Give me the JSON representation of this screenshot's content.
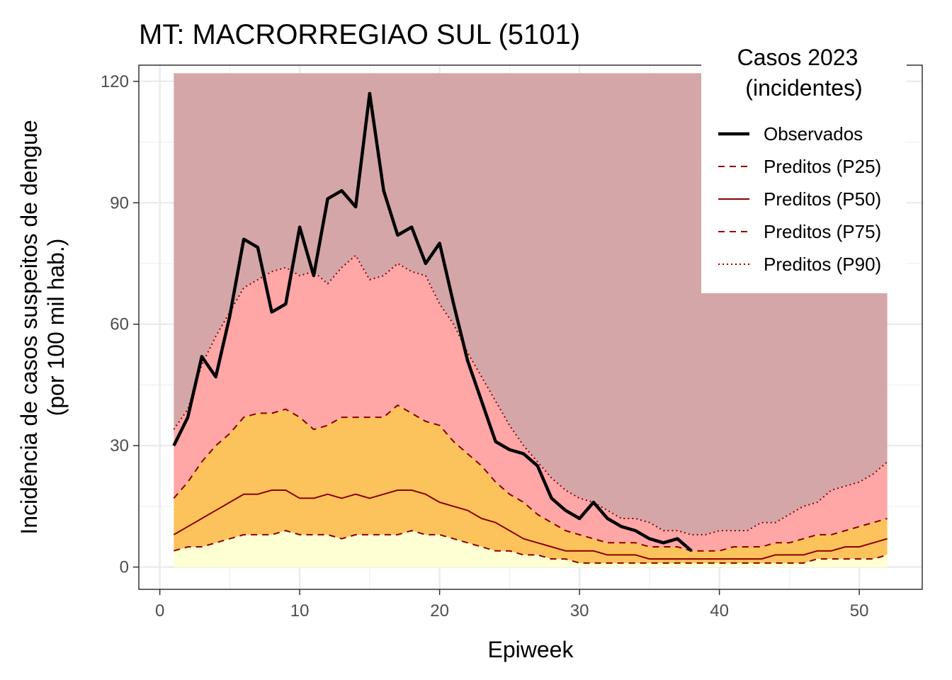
{
  "chart_data": {
    "type": "area",
    "title": "MT: MACRORREGIAO SUL (5101)",
    "xlabel": "Epiweek",
    "ylabel_line1": "Incidência de casos suspeitos de dengue",
    "ylabel_line2": "(por 100 mil hab.)",
    "xlim": [
      -1.5,
      54.5
    ],
    "ylim": [
      -5.5,
      124
    ],
    "xticks": [
      0,
      10,
      20,
      30,
      40,
      50
    ],
    "yticks": [
      0,
      30,
      60,
      90,
      120
    ],
    "grid": true,
    "legend": {
      "title_line1": "Casos 2023",
      "title_line2": "(incidentes)",
      "position": "top-right",
      "entries": [
        {
          "label": "Observados",
          "style": "solid-thick",
          "color": "#000000"
        },
        {
          "label": "Preditos (P25)",
          "style": "dashed",
          "color": "#8b0000"
        },
        {
          "label": "Preditos (P50)",
          "style": "solid",
          "color": "#8b0000"
        },
        {
          "label": "Preditos (P75)",
          "style": "dashed",
          "color": "#8b0000"
        },
        {
          "label": "Preditos (P90)",
          "style": "dotted",
          "color": "#8b0000"
        }
      ]
    },
    "colors": {
      "band_low": "#ffffd4",
      "band_p25_p75": "#fcc35c",
      "band_p75_p90": "#ffa6a6",
      "band_above_p90": "#d5a6a8",
      "predicted_line": "#8b0000",
      "observed_line": "#000000"
    },
    "band_top": 122,
    "weeks": [
      1,
      2,
      3,
      4,
      5,
      6,
      7,
      8,
      9,
      10,
      11,
      12,
      13,
      14,
      15,
      16,
      17,
      18,
      19,
      20,
      21,
      22,
      23,
      24,
      25,
      26,
      27,
      28,
      29,
      30,
      31,
      32,
      33,
      34,
      35,
      36,
      37,
      38,
      39,
      40,
      41,
      42,
      43,
      44,
      45,
      46,
      47,
      48,
      49,
      50,
      51,
      52
    ],
    "series": [
      {
        "name": "Preditos (P25)",
        "values": [
          4,
          5,
          5,
          6,
          7,
          8,
          8,
          8,
          9,
          8,
          8,
          8,
          7,
          8,
          8,
          8,
          8,
          9,
          8,
          8,
          7,
          6,
          5,
          4,
          4,
          3,
          3,
          2,
          2,
          1,
          1,
          1,
          1,
          1,
          1,
          1,
          1,
          1,
          1,
          1,
          1,
          1,
          1,
          1,
          1,
          1,
          2,
          2,
          2,
          2,
          2,
          3
        ]
      },
      {
        "name": "Preditos (P50)",
        "values": [
          8,
          10,
          12,
          14,
          16,
          18,
          18,
          19,
          19,
          17,
          17,
          18,
          17,
          18,
          17,
          18,
          19,
          19,
          18,
          16,
          15,
          14,
          12,
          11,
          9,
          7,
          6,
          5,
          4,
          4,
          4,
          3,
          3,
          3,
          2,
          2,
          2,
          2,
          2,
          2,
          2,
          2,
          2,
          3,
          3,
          3,
          4,
          4,
          5,
          5,
          6,
          7
        ]
      },
      {
        "name": "Preditos (P75)",
        "values": [
          17,
          21,
          26,
          30,
          33,
          37,
          38,
          38,
          39,
          37,
          34,
          35,
          37,
          37,
          37,
          37,
          40,
          38,
          36,
          35,
          31,
          28,
          25,
          21,
          18,
          16,
          13,
          11,
          9,
          8,
          7,
          6,
          6,
          6,
          5,
          5,
          5,
          4,
          4,
          4,
          5,
          5,
          5,
          6,
          6,
          7,
          8,
          8,
          9,
          10,
          11,
          12
        ]
      },
      {
        "name": "Preditos (P90)",
        "values": [
          34,
          39,
          50,
          57,
          63,
          69,
          71,
          73,
          74,
          72,
          73,
          70,
          74,
          77,
          71,
          72,
          75,
          73,
          72,
          65,
          60,
          53,
          47,
          41,
          35,
          30,
          26,
          22,
          19,
          17,
          16,
          14,
          12,
          12,
          11,
          9,
          9,
          8,
          8,
          9,
          9,
          9,
          11,
          11,
          13,
          15,
          16,
          19,
          20,
          21,
          23,
          26
        ]
      },
      {
        "name": "Observados",
        "values": [
          30,
          37,
          52,
          47,
          62,
          81,
          79,
          63,
          65,
          84,
          72,
          91,
          93,
          89,
          117,
          93,
          82,
          84,
          75,
          80,
          65,
          51,
          41,
          31,
          29,
          28,
          25,
          17,
          14,
          12,
          16,
          12,
          10,
          9,
          7,
          6,
          7,
          4
        ]
      }
    ]
  }
}
